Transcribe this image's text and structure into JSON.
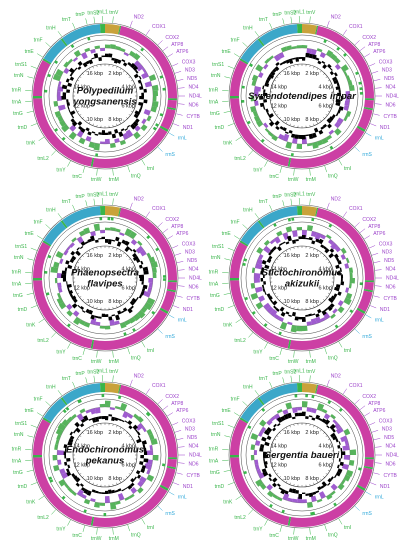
{
  "figure": {
    "panels": [
      {
        "species_lines": [
          "Polypedilum",
          "yongsanensis"
        ],
        "kbp_labels": [
          "16 kbp",
          "2 kbp",
          "14 kbp",
          "4 kbp",
          "12 kbp",
          "6 kbp",
          "8 kbp",
          "10 kbp"
        ]
      },
      {
        "species_lines": [
          "Synendotendipes impar"
        ],
        "kbp_labels": [
          "16 kbp",
          "2 kbp",
          "14 kbp",
          "4 kbp",
          "12 kbp",
          "6 kbp",
          "8 kbp",
          "10 kbp"
        ]
      },
      {
        "species_lines": [
          "Phaenopsectra",
          "flavipes"
        ],
        "kbp_labels": [
          "16 kbp",
          "2 kbp",
          "14 kbp",
          "4 kbp",
          "12 kbp",
          "6 kbp",
          "8 kbp",
          "10 kbp"
        ]
      },
      {
        "species_lines": [
          "Stictochironomus",
          "akizukii"
        ],
        "kbp_labels": [
          "16 kbp",
          "2 kbp",
          "14 kbp",
          "4 kbp",
          "12 kbp",
          "6 kbp",
          "8 kbp",
          "10 kbp"
        ]
      },
      {
        "species_lines": [
          "Endochironomus",
          "pekanus"
        ],
        "kbp_labels": [
          "16 kbp",
          "2 kbp",
          "14 kbp",
          "4 kbp",
          "12 kbp",
          "6 kbp",
          "8 kbp",
          "10 kbp"
        ]
      },
      {
        "species_lines": [
          "Sergentia baueri"
        ],
        "kbp_labels": [
          "16 kbp",
          "2 kbp",
          "14 kbp",
          "4 kbp",
          "12 kbp",
          "6 kbp",
          "8 kbp",
          "10 kbp"
        ]
      }
    ],
    "gene_labels": [
      {
        "text": "ND2",
        "color": "#9a3fc9"
      },
      {
        "text": "COX1",
        "color": "#9a3fc9"
      },
      {
        "text": "COX2",
        "color": "#9a3fc9"
      },
      {
        "text": "ATP8",
        "color": "#9a3fc9"
      },
      {
        "text": "ATP6",
        "color": "#9a3fc9"
      },
      {
        "text": "COX3",
        "color": "#9a3fc9"
      },
      {
        "text": "ND3",
        "color": "#9a3fc9"
      },
      {
        "text": "ND5",
        "color": "#9a3fc9"
      },
      {
        "text": "ND4",
        "color": "#9a3fc9"
      },
      {
        "text": "ND4L",
        "color": "#9a3fc9"
      },
      {
        "text": "ND6",
        "color": "#9a3fc9"
      },
      {
        "text": "CYTB",
        "color": "#9a3fc9"
      },
      {
        "text": "ND1",
        "color": "#9a3fc9"
      },
      {
        "text": "rrnL",
        "color": "#2aa6d8"
      },
      {
        "text": "rrnS",
        "color": "#2aa6d8"
      },
      {
        "text": "trnI",
        "color": "#39b54a"
      },
      {
        "text": "trnQ",
        "color": "#39b54a"
      },
      {
        "text": "trnM",
        "color": "#39b54a"
      },
      {
        "text": "trnW",
        "color": "#39b54a"
      },
      {
        "text": "trnC",
        "color": "#39b54a"
      },
      {
        "text": "trnY",
        "color": "#39b54a"
      },
      {
        "text": "trnL2",
        "color": "#39b54a"
      },
      {
        "text": "trnK",
        "color": "#39b54a"
      },
      {
        "text": "trnD",
        "color": "#39b54a"
      },
      {
        "text": "trnG",
        "color": "#39b54a"
      },
      {
        "text": "trnA",
        "color": "#39b54a"
      },
      {
        "text": "trnR",
        "color": "#39b54a"
      },
      {
        "text": "trnN",
        "color": "#39b54a"
      },
      {
        "text": "trnS1",
        "color": "#39b54a"
      },
      {
        "text": "trnE",
        "color": "#39b54a"
      },
      {
        "text": "trnF",
        "color": "#39b54a"
      },
      {
        "text": "trnH",
        "color": "#39b54a"
      },
      {
        "text": "trnT",
        "color": "#39b54a"
      },
      {
        "text": "trnP",
        "color": "#39b54a"
      },
      {
        "text": "trnS2",
        "color": "#39b54a"
      },
      {
        "text": "trnL1",
        "color": "#39b54a"
      },
      {
        "text": "trnV",
        "color": "#39b54a"
      }
    ],
    "colors": {
      "cds": "#cc3fa4",
      "rrna": "#3ba7c9",
      "control_region": "#c9a23a",
      "trna": "#39b54a",
      "gc_skew_positive": "#3aa63f",
      "gc_skew_negative": "#8e3fc7",
      "gc_content": "#000000"
    }
  }
}
